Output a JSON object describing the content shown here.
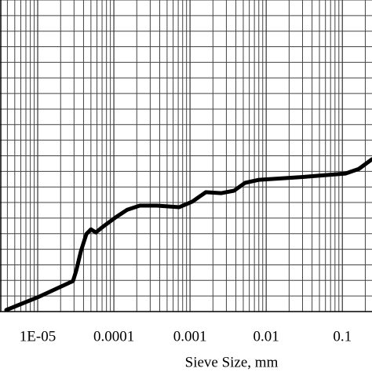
{
  "chart_data": {
    "type": "line",
    "x_label": "Sieve Size, mm",
    "xscale": "log",
    "xlim": [
      3.2e-06,
      0.245
    ],
    "xticks": [
      {
        "value": 1e-05,
        "label": "1E-05"
      },
      0.0001,
      0.001,
      0.01,
      0.1
    ],
    "x_minor_ticks": [
      4e-06,
      5e-06,
      6e-06,
      7e-06,
      8e-06,
      9e-06,
      2e-05,
      3e-05,
      4e-05,
      5e-05,
      6e-05,
      7e-05,
      8e-05,
      9e-05,
      0.0002,
      0.0003,
      0.0004,
      0.0005,
      0.0006,
      0.0007,
      0.0008,
      0.0009,
      0.002,
      0.003,
      0.004,
      0.005,
      0.006,
      0.007,
      0.008,
      0.009,
      0.02,
      0.03,
      0.04,
      0.05,
      0.06,
      0.07,
      0.08,
      0.09,
      0.2
    ],
    "ylim": [
      0,
      100
    ],
    "yticks": [
      0,
      5,
      10,
      15,
      20,
      25,
      30,
      35,
      40,
      45,
      50,
      55,
      60,
      65,
      70,
      75,
      80,
      85,
      90,
      95,
      100
    ],
    "grid": true,
    "series": [
      {
        "color": "#000000",
        "x": [
          3.87e-06,
          1.05e-05,
          2.91e-05,
          3.2e-05,
          3.69e-05,
          4.36e-05,
          5e-05,
          5.8e-05,
          7e-05,
          0.000105,
          0.00015,
          0.000219,
          0.000369,
          0.00072,
          0.00107,
          0.00161,
          0.00258,
          0.00378,
          0.00527,
          0.00807,
          0.0265,
          0.11,
          0.165,
          0.245
        ],
        "values": [
          0.5,
          4.8,
          9.8,
          13.1,
          19.4,
          24.9,
          26.4,
          25.4,
          27.0,
          30.2,
          32.7,
          34.0,
          34.0,
          33.5,
          35.3,
          38.3,
          38.0,
          38.8,
          41.3,
          42.3,
          43.1,
          44.3,
          45.8,
          48.9
        ]
      }
    ]
  }
}
